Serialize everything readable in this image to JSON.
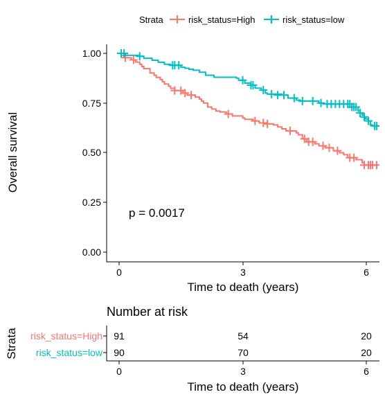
{
  "chart_data": {
    "type": "line",
    "subtype": "kaplan-meier",
    "legend": {
      "title": "Strata",
      "position": "top",
      "entries": [
        "risk_status=High",
        "risk_status=low"
      ]
    },
    "xlabel": "Time to death (years)",
    "ylabel": "Overall survival",
    "xlim": [
      -0.3,
      6.3
    ],
    "ylim": [
      -0.05,
      1.05
    ],
    "xticks": [
      0,
      3,
      6
    ],
    "xtick_labels": [
      "0",
      "3",
      "6"
    ],
    "yticks": [
      0,
      0.25,
      0.5,
      0.75,
      1.0
    ],
    "ytick_labels": [
      "0.00",
      "0.25",
      "0.50",
      "0.75",
      "1.00"
    ],
    "grid": false,
    "annotation": "p = 0.0017",
    "series": [
      {
        "name": "risk_status=High",
        "color": "#F8766D",
        "steps": [
          [
            0,
            1.0
          ],
          [
            0.05,
            0.989
          ],
          [
            0.15,
            0.978
          ],
          [
            0.3,
            0.967
          ],
          [
            0.4,
            0.956
          ],
          [
            0.5,
            0.945
          ],
          [
            0.55,
            0.934
          ],
          [
            0.6,
            0.923
          ],
          [
            0.75,
            0.901
          ],
          [
            0.85,
            0.89
          ],
          [
            0.9,
            0.879
          ],
          [
            1.0,
            0.868
          ],
          [
            1.05,
            0.857
          ],
          [
            1.1,
            0.846
          ],
          [
            1.2,
            0.835
          ],
          [
            1.25,
            0.824
          ],
          [
            1.35,
            0.813
          ],
          [
            1.55,
            0.8
          ],
          [
            1.65,
            0.79
          ],
          [
            1.85,
            0.78
          ],
          [
            1.95,
            0.77
          ],
          [
            2.0,
            0.76
          ],
          [
            2.05,
            0.75
          ],
          [
            2.15,
            0.73
          ],
          [
            2.25,
            0.72
          ],
          [
            2.35,
            0.71
          ],
          [
            2.45,
            0.705
          ],
          [
            2.6,
            0.695
          ],
          [
            2.75,
            0.685
          ],
          [
            3.0,
            0.675
          ],
          [
            3.05,
            0.668
          ],
          [
            3.25,
            0.66
          ],
          [
            3.4,
            0.65
          ],
          [
            3.55,
            0.645
          ],
          [
            3.75,
            0.64
          ],
          [
            3.85,
            0.63
          ],
          [
            3.95,
            0.62
          ],
          [
            4.05,
            0.61
          ],
          [
            4.3,
            0.6
          ],
          [
            4.35,
            0.59
          ],
          [
            4.45,
            0.57
          ],
          [
            4.55,
            0.555
          ],
          [
            4.75,
            0.545
          ],
          [
            4.85,
            0.535
          ],
          [
            5.0,
            0.525
          ],
          [
            5.2,
            0.51
          ],
          [
            5.35,
            0.5
          ],
          [
            5.45,
            0.49
          ],
          [
            5.55,
            0.475
          ],
          [
            5.75,
            0.465
          ],
          [
            5.9,
            0.45
          ],
          [
            5.95,
            0.438
          ],
          [
            6.3,
            0.438
          ]
        ],
        "censored": [
          [
            0.15,
            0.978
          ],
          [
            0.35,
            0.967
          ],
          [
            1.35,
            0.813
          ],
          [
            1.5,
            0.813
          ],
          [
            1.6,
            0.8
          ],
          [
            1.75,
            0.79
          ],
          [
            2.65,
            0.695
          ],
          [
            3.3,
            0.66
          ],
          [
            3.5,
            0.65
          ],
          [
            3.6,
            0.645
          ],
          [
            4.15,
            0.61
          ],
          [
            4.5,
            0.57
          ],
          [
            4.6,
            0.555
          ],
          [
            4.7,
            0.555
          ],
          [
            4.95,
            0.535
          ],
          [
            5.1,
            0.525
          ],
          [
            5.3,
            0.51
          ],
          [
            5.6,
            0.475
          ],
          [
            5.7,
            0.475
          ],
          [
            5.95,
            0.438
          ],
          [
            6.05,
            0.438
          ],
          [
            6.1,
            0.438
          ],
          [
            6.15,
            0.438
          ],
          [
            6.25,
            0.438
          ]
        ]
      },
      {
        "name": "risk_status=low",
        "color": "#00BFC4",
        "steps": [
          [
            0,
            1.0
          ],
          [
            0.15,
            0.99
          ],
          [
            0.5,
            0.985
          ],
          [
            0.6,
            0.975
          ],
          [
            0.8,
            0.965
          ],
          [
            0.95,
            0.955
          ],
          [
            1.1,
            0.945
          ],
          [
            1.25,
            0.94
          ],
          [
            1.5,
            0.93
          ],
          [
            1.6,
            0.925
          ],
          [
            1.7,
            0.92
          ],
          [
            1.8,
            0.915
          ],
          [
            1.95,
            0.905
          ],
          [
            2.1,
            0.89
          ],
          [
            2.3,
            0.88
          ],
          [
            2.8,
            0.88
          ],
          [
            2.85,
            0.875
          ],
          [
            2.9,
            0.865
          ],
          [
            3.05,
            0.85
          ],
          [
            3.2,
            0.84
          ],
          [
            3.3,
            0.825
          ],
          [
            3.45,
            0.815
          ],
          [
            3.55,
            0.8
          ],
          [
            3.6,
            0.795
          ],
          [
            3.95,
            0.79
          ],
          [
            4.1,
            0.775
          ],
          [
            4.3,
            0.765
          ],
          [
            4.4,
            0.76
          ],
          [
            4.8,
            0.76
          ],
          [
            4.85,
            0.75
          ],
          [
            4.95,
            0.745
          ],
          [
            5.65,
            0.73
          ],
          [
            5.8,
            0.71
          ],
          [
            5.85,
            0.7
          ],
          [
            5.9,
            0.69
          ],
          [
            5.95,
            0.68
          ],
          [
            5.98,
            0.67
          ],
          [
            6.05,
            0.66
          ],
          [
            6.1,
            0.64
          ],
          [
            6.15,
            0.635
          ],
          [
            6.3,
            0.635
          ]
        ],
        "censored": [
          [
            0.05,
            1.0
          ],
          [
            0.12,
            1.0
          ],
          [
            0.5,
            0.985
          ],
          [
            1.3,
            0.94
          ],
          [
            1.35,
            0.94
          ],
          [
            1.45,
            0.94
          ],
          [
            3.0,
            0.865
          ],
          [
            3.2,
            0.84
          ],
          [
            3.25,
            0.84
          ],
          [
            3.5,
            0.815
          ],
          [
            3.7,
            0.795
          ],
          [
            3.85,
            0.79
          ],
          [
            4.0,
            0.79
          ],
          [
            4.25,
            0.775
          ],
          [
            4.45,
            0.76
          ],
          [
            4.7,
            0.76
          ],
          [
            4.9,
            0.75
          ],
          [
            5.05,
            0.745
          ],
          [
            5.15,
            0.745
          ],
          [
            5.25,
            0.745
          ],
          [
            5.35,
            0.745
          ],
          [
            5.45,
            0.745
          ],
          [
            5.55,
            0.745
          ],
          [
            5.6,
            0.745
          ],
          [
            5.65,
            0.73
          ],
          [
            5.7,
            0.73
          ],
          [
            5.75,
            0.73
          ],
          [
            5.85,
            0.7
          ],
          [
            5.95,
            0.68
          ],
          [
            6.05,
            0.66
          ],
          [
            6.2,
            0.635
          ],
          [
            6.25,
            0.635
          ]
        ]
      }
    ],
    "risk_table": {
      "title": "Number at risk",
      "ylabel": "Strata",
      "xlabel": "Time to death (years)",
      "times": [
        0,
        3,
        6
      ],
      "rows": [
        {
          "label": "risk_status=High",
          "color": "#F8766D",
          "counts": [
            "91",
            "54",
            "20"
          ]
        },
        {
          "label": "risk_status=low",
          "color": "#00BFC4",
          "counts": [
            "90",
            "70",
            "20"
          ]
        }
      ]
    }
  }
}
